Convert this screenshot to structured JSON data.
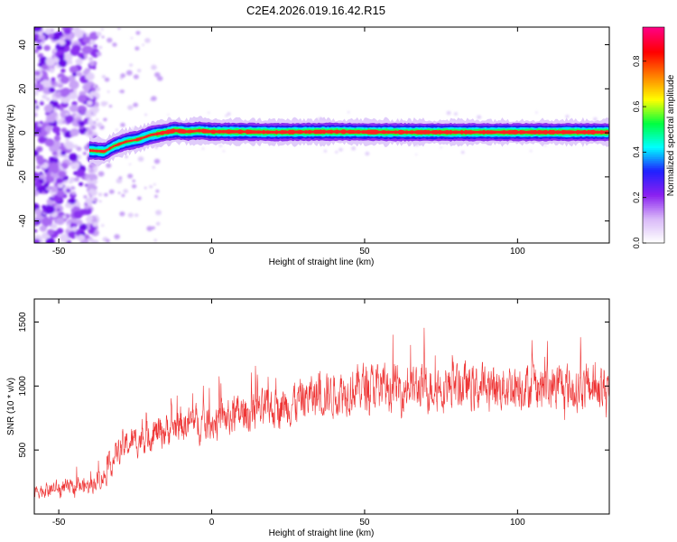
{
  "title": "C2E4.2026.019.16.42.R15",
  "chart_data": [
    {
      "type": "heatmap",
      "xlabel": "Height of straight line (km)",
      "ylabel": "Frequency (Hz)",
      "xlim": [
        -58,
        130
      ],
      "ylim": [
        -50,
        48
      ],
      "x_ticks": [
        {
          "v": -50,
          "label": "-50"
        },
        {
          "v": 0,
          "label": "0"
        },
        {
          "v": 50,
          "label": "50"
        },
        {
          "v": 100,
          "label": "100"
        }
      ],
      "y_ticks": [
        {
          "v": -40,
          "label": "-40"
        },
        {
          "v": -20,
          "label": "-20"
        },
        {
          "v": 0,
          "label": "0"
        },
        {
          "v": 20,
          "label": "20"
        },
        {
          "v": 40,
          "label": "40"
        }
      ],
      "ridge": {
        "x": [
          -40,
          -35,
          -32,
          -28,
          -24,
          -20,
          -16,
          -12,
          -8,
          -4,
          0,
          10,
          20,
          40,
          60,
          80,
          100,
          130
        ],
        "freq": [
          -8,
          -8.5,
          -6,
          -4,
          -3,
          -1,
          0,
          1,
          0.5,
          1,
          0.5,
          0.5,
          0.3,
          0.5,
          0.3,
          0.3,
          0.3,
          0.3
        ]
      },
      "colorbar": {
        "label": "Normalized spectral amplitude",
        "range": [
          0,
          0.95
        ],
        "ticks": [
          {
            "v": 0.0,
            "label": "0.0"
          },
          {
            "v": 0.2,
            "label": "0.2"
          },
          {
            "v": 0.4,
            "label": "0.4"
          },
          {
            "v": 0.6,
            "label": "0.6"
          },
          {
            "v": 0.8,
            "label": "0.8"
          }
        ],
        "colors": [
          "#ffffff",
          "#d8b8f8",
          "#8a20f0",
          "#2020ff",
          "#00ffff",
          "#00ff40",
          "#ffff00",
          "#ff8000",
          "#ff0000",
          "#ff0080"
        ]
      }
    },
    {
      "type": "line",
      "xlabel": "Height of straight line (km)",
      "ylabel": "SNR (10 * v/v)",
      "xlim": [
        -58,
        130
      ],
      "ylim": [
        0,
        1680
      ],
      "x_ticks": [
        {
          "v": -50,
          "label": "-50"
        },
        {
          "v": 0,
          "label": "0"
        },
        {
          "v": 50,
          "label": "50"
        },
        {
          "v": 100,
          "label": "100"
        }
      ],
      "y_ticks": [
        {
          "v": 500,
          "label": "500"
        },
        {
          "v": 1000,
          "label": "1000"
        },
        {
          "v": 1500,
          "label": "1500"
        }
      ],
      "color": "#ee3333",
      "trend": {
        "x": [
          -58,
          -50,
          -40,
          -35,
          -30,
          -20,
          -10,
          0,
          10,
          20,
          30,
          40,
          50,
          60,
          70,
          80,
          90,
          100,
          110,
          120,
          130
        ],
        "y": [
          180,
          200,
          220,
          300,
          520,
          620,
          700,
          720,
          780,
          820,
          900,
          950,
          1000,
          980,
          990,
          1000,
          980,
          1010,
          990,
          980,
          1000
        ]
      }
    }
  ]
}
